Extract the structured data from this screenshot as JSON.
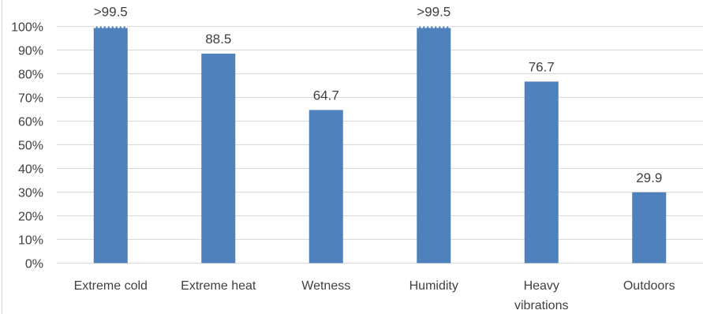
{
  "chart_data": {
    "type": "bar",
    "title": "",
    "xlabel": "",
    "ylabel": "",
    "ylim": [
      0,
      100
    ],
    "y_ticks": [
      "0%",
      "10%",
      "20%",
      "30%",
      "40%",
      "50%",
      "60%",
      "70%",
      "80%",
      "90%",
      "100%"
    ],
    "grid": true,
    "legend": "none",
    "categories": [
      "Extreme cold",
      "Extreme heat",
      "Wetness",
      "Humidity",
      "Heavy vibrations",
      "Outdoors"
    ],
    "category_lines": [
      [
        "Extreme cold"
      ],
      [
        "Extreme heat"
      ],
      [
        "Wetness"
      ],
      [
        "Humidity"
      ],
      [
        "Heavy",
        "vibrations"
      ],
      [
        "Outdoors"
      ]
    ],
    "values": [
      100,
      88.5,
      64.7,
      100,
      76.7,
      29.9
    ],
    "data_labels": [
      ">99.5",
      "88.5",
      "64.7",
      ">99.5",
      "76.7",
      "29.9"
    ],
    "truncated": [
      true,
      false,
      false,
      true,
      false,
      false
    ],
    "colors": {
      "bar": "#4f81bd",
      "grid": "#d9d9d9",
      "text": "#404040"
    }
  }
}
